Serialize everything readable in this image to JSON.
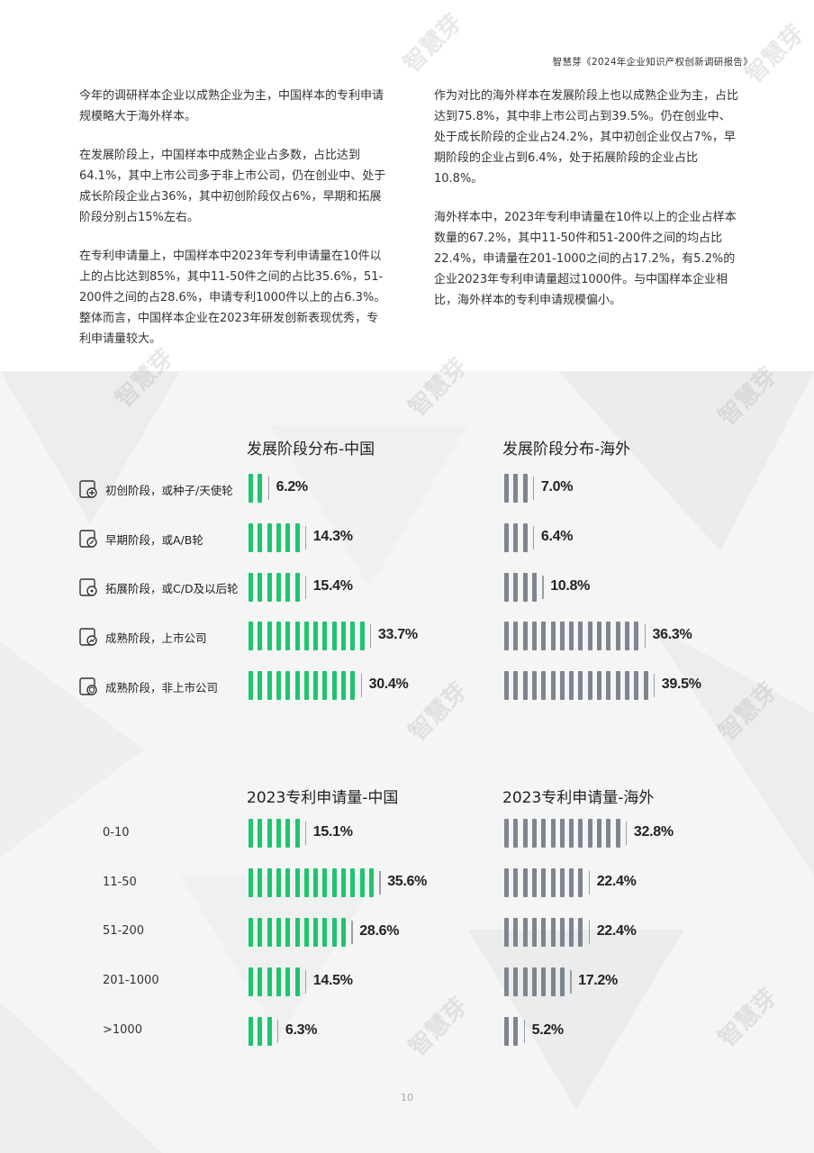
{
  "header": {
    "title": "智慧芽《2024年企业知识产权创新调研报告》"
  },
  "watermark": "智慧芽",
  "text": {
    "left": [
      "今年的调研样本企业以成熟企业为主，中国样本的专利申请规模略大于海外样本。",
      "在发展阶段上，中国样本中成熟企业占多数，占比达到64.1%，其中上市公司多于非上市公司，仍在创业中、处于成长阶段企业占36%，其中初创阶段仅占6%，早期和拓展阶段分别占15%左右。",
      "在专利申请量上，中国样本中2023年专利申请量在10件以上的占比达到85%，其中11-50件之间的占比35.6%，51-200件之间的占28.6%，申请专利1000件以上的占6.3%。整体而言，中国样本企业在2023年研发创新表现优秀，专利申请量较大。"
    ],
    "right": [
      "作为对比的海外样本在发展阶段上也以成熟企业为主，占比达到75.8%，其中非上市公司占到39.5%。仍在创业中、处于成长阶段的企业占24.2%，其中初创企业仅占7%，早期阶段的企业占到6.4%，处于拓展阶段的企业占比10.8%。",
      "海外样本中，2023年专利申请量在10件以上的企业占样本数量的67.2%，其中11-50件和51-200件之间的均占比22.4%，申请量在201-1000之间的占17.2%，有5.2%的企业2023年专利申请量超过1000件。与中国样本企业相比，海外样本的专利申请规模偏小。"
    ]
  },
  "colors": {
    "china": "#1fc46e",
    "overseas": "#7d8590",
    "end_tick": "#9aa0a6"
  },
  "icons": [
    "rocket-icon",
    "sprout-icon",
    "expand-icon",
    "growth-chart-icon",
    "shield-icon"
  ],
  "chart_data": [
    {
      "type": "bar",
      "title": "发展阶段分布-中国",
      "categories": [
        "初创阶段，或种子/天使轮",
        "早期阶段，或A/B轮",
        "拓展阶段，或C/D及以后轮",
        "成熟阶段，上市公司",
        "成熟阶段，非上市公司"
      ],
      "values": [
        6.2,
        14.3,
        15.4,
        33.7,
        30.4
      ],
      "value_labels": [
        "6.2%",
        "14.3%",
        "15.4%",
        "33.7%",
        "30.4%"
      ]
    },
    {
      "type": "bar",
      "title": "发展阶段分布-海外",
      "categories": [
        "初创阶段，或种子/天使轮",
        "早期阶段，或A/B轮",
        "拓展阶段，或C/D及以后轮",
        "成熟阶段，上市公司",
        "成熟阶段，非上市公司"
      ],
      "values": [
        7.0,
        6.4,
        10.8,
        36.3,
        39.5
      ],
      "value_labels": [
        "7.0%",
        "6.4%",
        "10.8%",
        "36.3%",
        "39.5%"
      ]
    },
    {
      "type": "bar",
      "title": "2023专利申请量-中国",
      "categories": [
        "0-10",
        "11-50",
        "51-200",
        "201-1000",
        ">1000"
      ],
      "values": [
        15.1,
        35.6,
        28.6,
        14.5,
        6.3
      ],
      "value_labels": [
        "15.1%",
        "35.6%",
        "28.6%",
        "14.5%",
        "6.3%"
      ]
    },
    {
      "type": "bar",
      "title": "2023专利申请量-海外",
      "categories": [
        "0-10",
        "11-50",
        "51-200",
        "201-1000",
        ">1000"
      ],
      "values": [
        32.8,
        22.4,
        22.4,
        17.2,
        5.2
      ],
      "value_labels": [
        "32.8%",
        "22.4%",
        "22.4%",
        "17.2%",
        "5.2%"
      ]
    }
  ],
  "page_number": "10"
}
